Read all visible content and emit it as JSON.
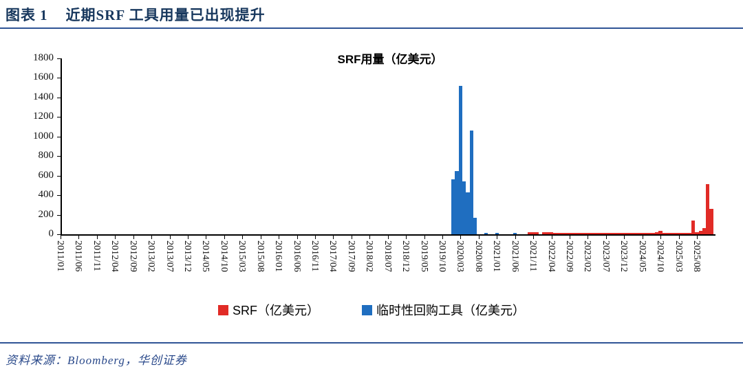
{
  "header": {
    "figure_label": "图表",
    "figure_number": "1",
    "title": "近期SRF 工具用量已出现提升"
  },
  "footer": {
    "source_text": "资料来源：Bloomberg，华创证券"
  },
  "colors": {
    "header_navy": "#17375D",
    "rule_navy": "#2E5395",
    "srf_red": "#E12B26",
    "repo_blue": "#1F6EC0",
    "axis_black": "#000000"
  },
  "legend": {
    "items": [
      {
        "label": "SRF（亿美元）",
        "color": "#E12B26"
      },
      {
        "label": "临时性回购工具（亿美元）",
        "color": "#1F6EC0"
      }
    ]
  },
  "chart_data": {
    "type": "bar",
    "title": "SRF用量（亿美元）",
    "xlabel": "",
    "ylabel": "",
    "ylim": [
      0,
      1800
    ],
    "ytick_step": 200,
    "grid": false,
    "legend_position": "bottom",
    "x_start": "2011/01",
    "x_end": "2025/12",
    "x_tick_labels": [
      "2011/01",
      "2011/06",
      "2011/11",
      "2012/04",
      "2012/09",
      "2013/02",
      "2013/07",
      "2013/12",
      "2014/05",
      "2014/10",
      "2015/03",
      "2015/08",
      "2016/01",
      "2016/06",
      "2016/11",
      "2017/04",
      "2017/09",
      "2018/02",
      "2018/07",
      "2018/12",
      "2019/05",
      "2019/10",
      "2020/03",
      "2020/08",
      "2021/01",
      "2021/06",
      "2021/11",
      "2022/04",
      "2022/09",
      "2023/02",
      "2023/07",
      "2023/12",
      "2024/05",
      "2024/10",
      "2025/03",
      "2025/08"
    ],
    "series": [
      {
        "name": "临时性回购工具（亿美元）",
        "color": "#1F6EC0",
        "points": {
          "2020/01": 560,
          "2020/02": 650,
          "2020/03": 1520,
          "2020/04": 540,
          "2020/05": 430,
          "2020/06": 1060,
          "2020/07": 170,
          "2020/10": 15,
          "2021/01": 12,
          "2021/06": 12
        },
        "runs": []
      },
      {
        "name": "SRF（亿美元）",
        "color": "#E12B26",
        "points": {
          "2021/10": 22,
          "2021/11": 22,
          "2021/12": 20,
          "2022/02": 18,
          "2022/03": 18,
          "2022/04": 18,
          "2024/09": 18,
          "2024/10": 35,
          "2025/07": 140,
          "2025/08": 20,
          "2025/09": 35,
          "2025/10": 60,
          "2025/11": 510,
          "2025/12": 260
        },
        "runs": [
          {
            "from": "2022/05",
            "to": "2025/06",
            "value": 12
          }
        ]
      }
    ]
  }
}
